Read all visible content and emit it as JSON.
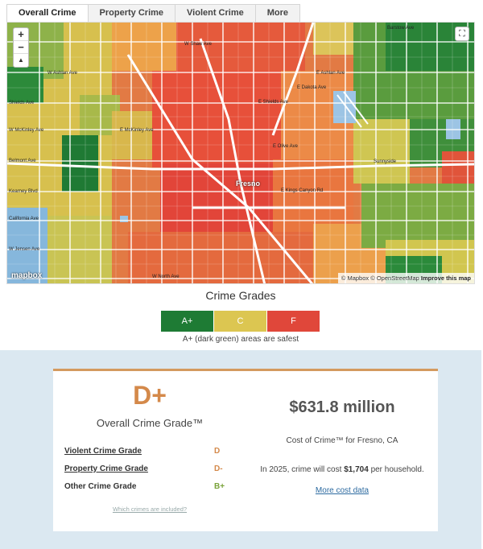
{
  "tabs": [
    {
      "label": "Overall Crime",
      "active": true
    },
    {
      "label": "Property Crime",
      "active": false
    },
    {
      "label": "Violent Crime",
      "active": false
    },
    {
      "label": "More",
      "active": false
    }
  ],
  "map": {
    "zoom_in": "+",
    "zoom_out": "−",
    "compass": "▲",
    "fullscreen": "⛶",
    "city_label": "Fresno",
    "place_labels": {
      "barstow": "Barstow Ave",
      "shaw": "W Shaw Ave",
      "ashlan_w": "W Ashlan Ave",
      "ashlan_e": "E Ashlan Ave",
      "dakota": "E Dakota Ave",
      "shields_w": "Shields Ave",
      "shields_e": "E Shields Ave",
      "mckinley_w": "W McKinley Ave",
      "mckinley_e": "E McKinley Ave",
      "olive": "E Olive Ave",
      "belmont": "Belmont Ave",
      "sunnyside": "Sunnyside",
      "kings_canyon": "E Kings Canyon Rd",
      "jensen": "W Jensen Ave",
      "california": "California Ave",
      "kearney": "Kearney Blvd",
      "north": "W North Ave"
    },
    "logo": "mapbox",
    "attribution_1": "© Mapbox © OpenStreetMap",
    "attribution_2": "Improve this map"
  },
  "legend": {
    "title": "Crime Grades",
    "items": [
      {
        "label": "A+",
        "color": "#1e7b34"
      },
      {
        "label": "C",
        "color": "#dcc651"
      },
      {
        "label": "F",
        "color": "#e0473a"
      }
    ],
    "note": "A+ (dark green) areas are safest"
  },
  "summary": {
    "grade": "D+",
    "grade_label": "Overall Crime Grade™",
    "rows": [
      {
        "name": "Violent Crime Grade",
        "value": "D",
        "color": "#d4894a",
        "link": true
      },
      {
        "name": "Property Crime Grade",
        "value": "D-",
        "color": "#d4894a",
        "link": true
      },
      {
        "name": "Other Crime Grade",
        "value": "B+",
        "color": "#7aa33a",
        "link": false
      }
    ],
    "which_crimes": "Which crimes are included?",
    "cost": "$631.8 million",
    "cost_label": "Cost of Crime™ for Fresno, CA",
    "household_prefix": "In 2025, crime will cost",
    "household_amount": "$1,704",
    "household_suffix": "per household.",
    "more_cost": "More cost data"
  }
}
